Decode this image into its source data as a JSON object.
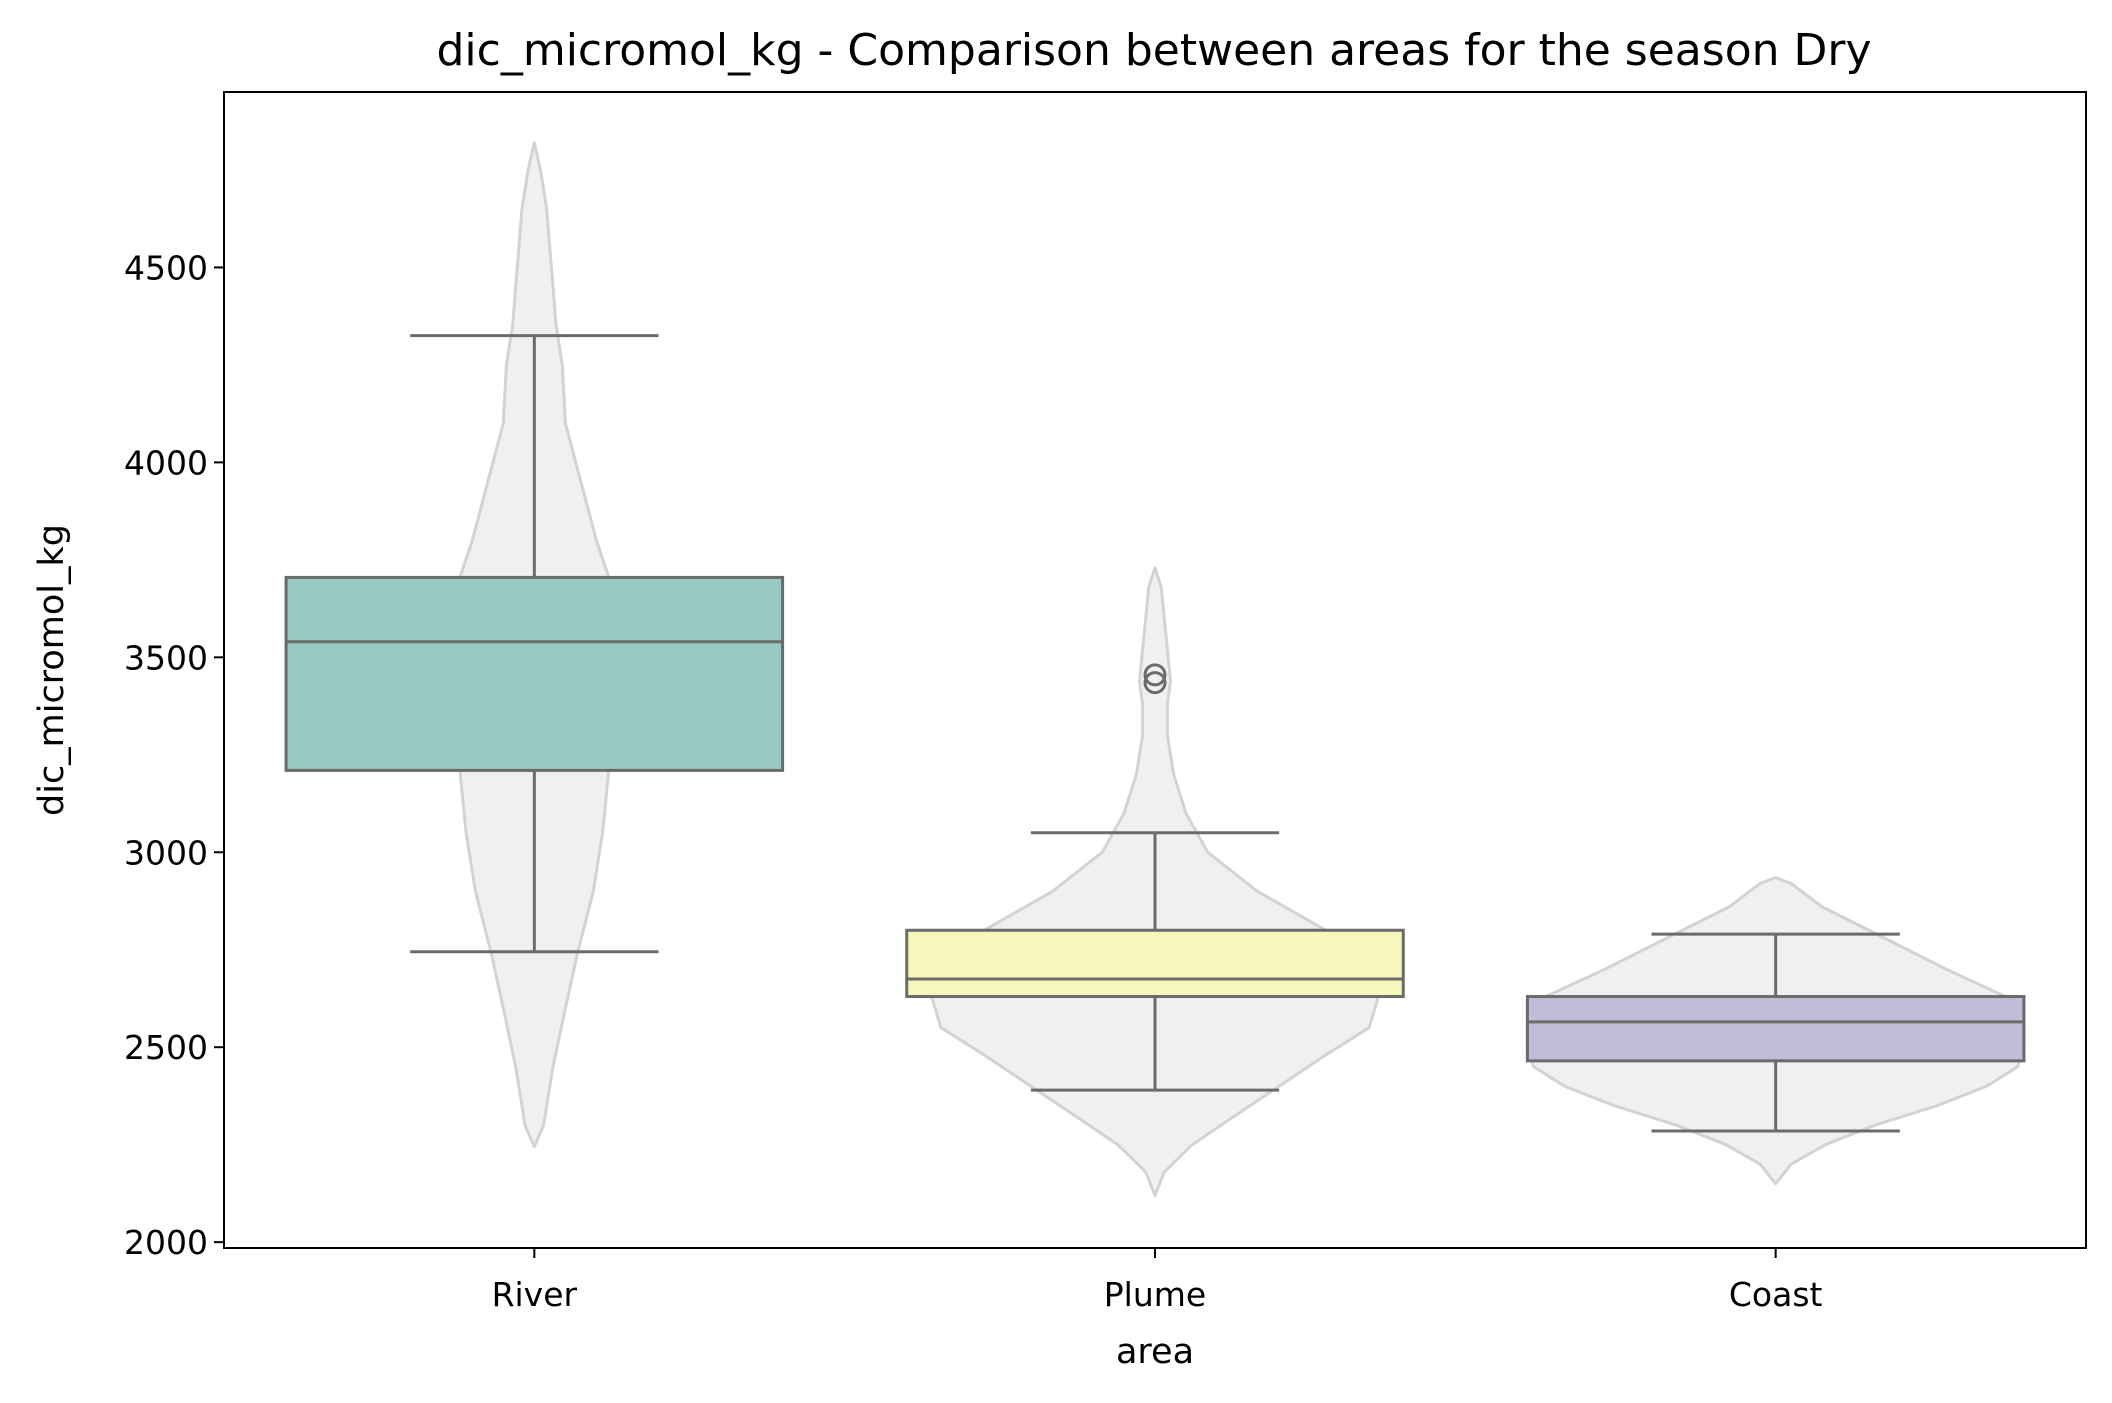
{
  "chart_data": {
    "type": "box",
    "overlay": "violin",
    "title": "dic_micromol_kg - Comparison between areas for the season Dry",
    "xlabel": "area",
    "ylabel": "dic_micromol_kg",
    "ylim": [
      1985,
      4950
    ],
    "yticks": [
      2000,
      2500,
      3000,
      3500,
      4000,
      4500
    ],
    "categories": [
      "River",
      "Plume",
      "Coast"
    ],
    "colors": {
      "River": "#99c9c2",
      "Plume": "#f7f7bb",
      "Coast": "#c0bdd8",
      "violin_fill": "#f0f0f0",
      "violin_edge": "#d3d3d3",
      "box_edge": "#6b6b6b"
    },
    "boxes": [
      {
        "category": "River",
        "whisker_low": 2745,
        "q1": 3210,
        "median": 3540,
        "q3": 3705,
        "whisker_high": 4325,
        "outliers": []
      },
      {
        "category": "Plume",
        "whisker_low": 2390,
        "q1": 2630,
        "median": 2675,
        "q3": 2800,
        "whisker_high": 3050,
        "outliers": [
          3435,
          3455
        ]
      },
      {
        "category": "Coast",
        "whisker_low": 2285,
        "q1": 2465,
        "median": 2565,
        "q3": 2630,
        "whisker_high": 2790,
        "outliers": []
      }
    ],
    "violins": [
      {
        "category": "River",
        "profile": [
          [
            2245,
            0.0
          ],
          [
            2300,
            0.03
          ],
          [
            2450,
            0.06
          ],
          [
            2600,
            0.1
          ],
          [
            2745,
            0.14
          ],
          [
            2900,
            0.19
          ],
          [
            3050,
            0.22
          ],
          [
            3210,
            0.24
          ],
          [
            3400,
            0.25
          ],
          [
            3540,
            0.25
          ],
          [
            3705,
            0.24
          ],
          [
            3800,
            0.2
          ],
          [
            3950,
            0.15
          ],
          [
            4100,
            0.1
          ],
          [
            4250,
            0.09
          ],
          [
            4350,
            0.07
          ],
          [
            4450,
            0.06
          ],
          [
            4550,
            0.05
          ],
          [
            4650,
            0.04
          ],
          [
            4750,
            0.02
          ],
          [
            4820,
            0.0
          ]
        ]
      },
      {
        "category": "Plume",
        "profile": [
          [
            2120,
            0.0
          ],
          [
            2180,
            0.03
          ],
          [
            2250,
            0.12
          ],
          [
            2320,
            0.25
          ],
          [
            2400,
            0.4
          ],
          [
            2480,
            0.55
          ],
          [
            2550,
            0.69
          ],
          [
            2630,
            0.72
          ],
          [
            2675,
            0.72
          ],
          [
            2720,
            0.68
          ],
          [
            2800,
            0.55
          ],
          [
            2900,
            0.33
          ],
          [
            3000,
            0.17
          ],
          [
            3100,
            0.1
          ],
          [
            3200,
            0.06
          ],
          [
            3300,
            0.04
          ],
          [
            3380,
            0.04
          ],
          [
            3440,
            0.05
          ],
          [
            3520,
            0.04
          ],
          [
            3600,
            0.03
          ],
          [
            3680,
            0.02
          ],
          [
            3730,
            0.0
          ]
        ]
      },
      {
        "category": "Coast",
        "profile": [
          [
            2150,
            0.0
          ],
          [
            2200,
            0.05
          ],
          [
            2250,
            0.16
          ],
          [
            2300,
            0.32
          ],
          [
            2350,
            0.52
          ],
          [
            2400,
            0.68
          ],
          [
            2450,
            0.78
          ],
          [
            2500,
            0.8
          ],
          [
            2560,
            0.8
          ],
          [
            2630,
            0.74
          ],
          [
            2700,
            0.55
          ],
          [
            2780,
            0.35
          ],
          [
            2860,
            0.15
          ],
          [
            2920,
            0.05
          ],
          [
            2935,
            0.0
          ]
        ]
      }
    ]
  }
}
